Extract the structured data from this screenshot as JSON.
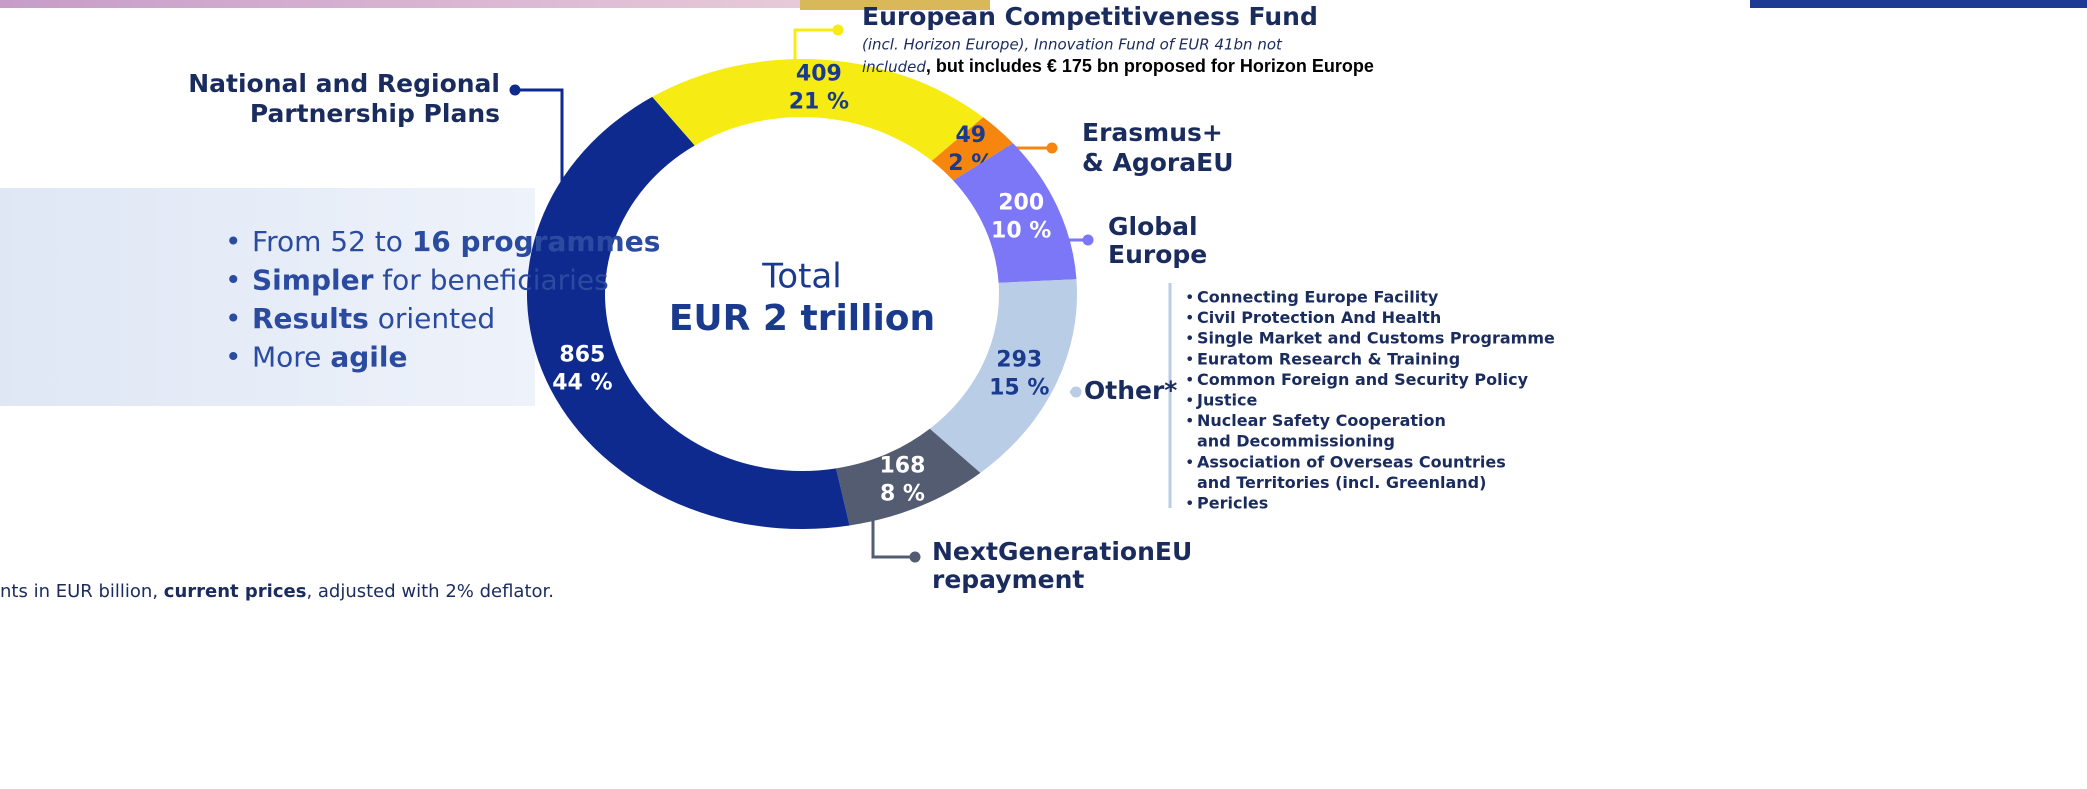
{
  "chart_data": {
    "type": "donut",
    "center_text": [
      "Total",
      "EUR 2 trillion"
    ],
    "categories": [
      [
        "European Competitiveness Fund"
      ],
      [
        "Erasmus+",
        "& AgoraEU"
      ],
      [
        "Global",
        "Europe"
      ],
      [
        "Other*"
      ],
      [
        "NextGenerationEU",
        "repayment"
      ],
      [
        "National and Regional",
        "Partnership Plans"
      ]
    ],
    "values": [
      409,
      49,
      200,
      293,
      168,
      865
    ],
    "share_labels": [
      "21 %",
      "2 %",
      "10 %",
      "15 %",
      "8 %",
      "44 %"
    ],
    "colors": [
      "#f6ec14",
      "#f6860e",
      "#7b77f6",
      "#b9cde7",
      "#535c71",
      "#0e2a8f"
    ],
    "label_colors": [
      "#1a3a8e",
      "#1a3a8e",
      "#ffffff",
      "#1a3a8e",
      "#ffffff",
      "#ffffff"
    ],
    "fund_note": [
      "(incl. Horizon Europe), Innovation Fund of EUR 41bn not",
      "included",
      ", but includes € 175 bn proposed for Horizon Europe"
    ],
    "other_items": [
      [
        "Connecting Europe Facility"
      ],
      [
        "Civil Protection And Health"
      ],
      [
        "Single Market and Customs Programme"
      ],
      [
        "Euratom Research & Training"
      ],
      [
        "Common Foreign and Security Policy"
      ],
      [
        "Justice"
      ],
      [
        "Nuclear Safety Cooperation",
        "and Decommissioning"
      ],
      [
        "Association of Overseas Countries",
        "and Territories (incl. Greenland)"
      ],
      [
        "Pericles"
      ]
    ],
    "bullets": [
      {
        "parts": [
          "From 52 to ",
          "16 programmes"
        ],
        "bold": [
          false,
          true
        ]
      },
      {
        "parts": [
          "Simpler",
          " for beneficiaries"
        ],
        "bold": [
          true,
          false
        ]
      },
      {
        "parts": [
          "Results",
          " oriented"
        ],
        "bold": [
          true,
          false
        ]
      },
      {
        "parts": [
          "More ",
          "agile"
        ],
        "bold": [
          false,
          true
        ]
      }
    ],
    "footnote": {
      "parts": [
        "nts in EUR billion, ",
        "current prices",
        ", adjusted with 2% deflator."
      ],
      "bold": [
        false,
        true,
        false
      ]
    }
  }
}
